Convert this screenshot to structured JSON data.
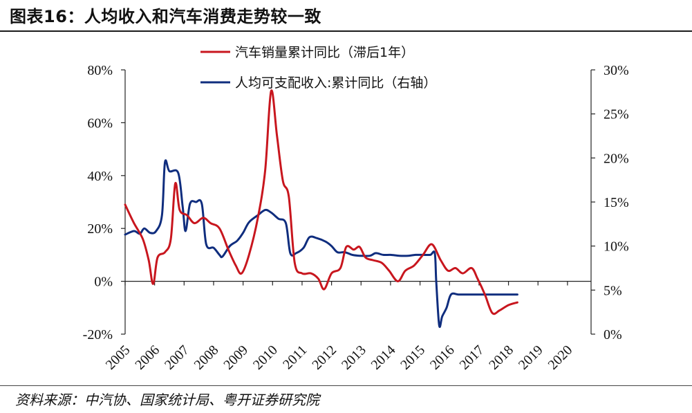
{
  "figure": {
    "title": "图表16：人均收入和汽车消费走势较一致",
    "source": "资料来源：中汽协、国家统计局、粤开证券研究院"
  },
  "chart_data": {
    "type": "line",
    "x_axis": {
      "tick_labels": [
        "2005",
        "2006",
        "2007",
        "2008",
        "2009",
        "2010",
        "2011",
        "2012",
        "2013",
        "2014",
        "2015",
        "2016",
        "2017",
        "2018",
        "2019",
        "2020"
      ],
      "range": [
        2005,
        2020.8
      ]
    },
    "y_left": {
      "range": [
        -20,
        80
      ],
      "ticks": [
        -20,
        0,
        20,
        40,
        60,
        80
      ],
      "tick_labels": [
        "-20%",
        "0%",
        "20%",
        "40%",
        "60%",
        "80%"
      ]
    },
    "y_right": {
      "range": [
        0,
        30
      ],
      "ticks": [
        0,
        5,
        10,
        15,
        20,
        25,
        30
      ],
      "tick_labels": [
        "0%",
        "5%",
        "10%",
        "15%",
        "20%",
        "25%",
        "30%"
      ]
    },
    "grid": false,
    "legend_position": "top-center",
    "series": [
      {
        "name": "汽车销量累计同比（滞后1年）",
        "axis": "left",
        "color": "#c8161e",
        "points": [
          [
            2005.0,
            29
          ],
          [
            2005.3,
            22
          ],
          [
            2005.6,
            16
          ],
          [
            2005.8,
            8
          ],
          [
            2005.95,
            -1
          ],
          [
            2006.1,
            9
          ],
          [
            2006.35,
            11
          ],
          [
            2006.55,
            16
          ],
          [
            2006.7,
            37
          ],
          [
            2006.85,
            27
          ],
          [
            2007.1,
            25
          ],
          [
            2007.35,
            22
          ],
          [
            2007.65,
            24
          ],
          [
            2007.9,
            22
          ],
          [
            2008.2,
            20
          ],
          [
            2008.5,
            12
          ],
          [
            2008.75,
            6
          ],
          [
            2008.95,
            3
          ],
          [
            2009.2,
            10
          ],
          [
            2009.5,
            24
          ],
          [
            2009.75,
            42
          ],
          [
            2009.95,
            72
          ],
          [
            2010.15,
            55
          ],
          [
            2010.35,
            38
          ],
          [
            2010.55,
            32
          ],
          [
            2010.75,
            7
          ],
          [
            2011.0,
            3
          ],
          [
            2011.3,
            3
          ],
          [
            2011.55,
            1
          ],
          [
            2011.75,
            -3
          ],
          [
            2012.0,
            3
          ],
          [
            2012.3,
            5
          ],
          [
            2012.5,
            13
          ],
          [
            2012.75,
            12
          ],
          [
            2012.95,
            13
          ],
          [
            2013.15,
            9
          ],
          [
            2013.4,
            8
          ],
          [
            2013.7,
            7
          ],
          [
            2013.95,
            4
          ],
          [
            2014.25,
            0
          ],
          [
            2014.5,
            4
          ],
          [
            2014.8,
            6
          ],
          [
            2015.1,
            10
          ],
          [
            2015.4,
            14
          ],
          [
            2015.7,
            8
          ],
          [
            2015.95,
            4
          ],
          [
            2016.2,
            5
          ],
          [
            2016.45,
            3
          ],
          [
            2016.75,
            5
          ],
          [
            2016.95,
            1
          ],
          [
            2017.2,
            -5
          ],
          [
            2017.45,
            -12
          ],
          [
            2017.7,
            -11
          ],
          [
            2018.0,
            -9
          ],
          [
            2018.3,
            -8
          ]
        ]
      },
      {
        "name": "人均可支配收入:累计同比（右轴）",
        "axis": "right",
        "color": "#0f2d7e",
        "points": [
          [
            2005.0,
            11.3
          ],
          [
            2005.3,
            11.7
          ],
          [
            2005.5,
            11.4
          ],
          [
            2005.65,
            12.0
          ],
          [
            2005.85,
            11.5
          ],
          [
            2006.05,
            11.7
          ],
          [
            2006.25,
            13.5
          ],
          [
            2006.35,
            19.5
          ],
          [
            2006.5,
            18.5
          ],
          [
            2006.8,
            18.3
          ],
          [
            2006.95,
            14.5
          ],
          [
            2007.05,
            11.7
          ],
          [
            2007.2,
            14.8
          ],
          [
            2007.4,
            15.0
          ],
          [
            2007.6,
            14.8
          ],
          [
            2007.75,
            10.2
          ],
          [
            2008.0,
            9.8
          ],
          [
            2008.2,
            9.0
          ],
          [
            2008.3,
            8.8
          ],
          [
            2008.55,
            10.0
          ],
          [
            2008.8,
            10.6
          ],
          [
            2009.0,
            11.5
          ],
          [
            2009.2,
            12.7
          ],
          [
            2009.5,
            13.5
          ],
          [
            2009.75,
            14.1
          ],
          [
            2009.95,
            13.8
          ],
          [
            2010.2,
            13.1
          ],
          [
            2010.45,
            12.6
          ],
          [
            2010.6,
            9.2
          ],
          [
            2010.8,
            9.2
          ],
          [
            2011.05,
            9.8
          ],
          [
            2011.25,
            11.0
          ],
          [
            2011.5,
            10.9
          ],
          [
            2011.8,
            10.5
          ],
          [
            2012.0,
            10.0
          ],
          [
            2012.2,
            9.3
          ],
          [
            2012.45,
            9.3
          ],
          [
            2012.7,
            9.0
          ],
          [
            2012.95,
            8.9
          ],
          [
            2013.3,
            8.9
          ],
          [
            2013.5,
            9.2
          ],
          [
            2013.75,
            9.0
          ],
          [
            2014.0,
            9.0
          ],
          [
            2014.3,
            8.9
          ],
          [
            2014.6,
            8.9
          ],
          [
            2014.85,
            9.0
          ],
          [
            2015.1,
            9.0
          ],
          [
            2015.35,
            9.0
          ],
          [
            2015.5,
            9.2
          ],
          [
            2015.55,
            6.0
          ],
          [
            2015.65,
            1.0
          ],
          [
            2015.75,
            2.0
          ],
          [
            2015.9,
            3.0
          ],
          [
            2016.05,
            4.5
          ],
          [
            2016.3,
            4.5
          ],
          [
            2016.6,
            4.5
          ],
          [
            2016.95,
            4.5
          ],
          [
            2017.25,
            4.5
          ],
          [
            2017.55,
            4.5
          ],
          [
            2017.8,
            4.5
          ],
          [
            2018.1,
            4.5
          ],
          [
            2018.3,
            4.5
          ]
        ]
      }
    ]
  }
}
